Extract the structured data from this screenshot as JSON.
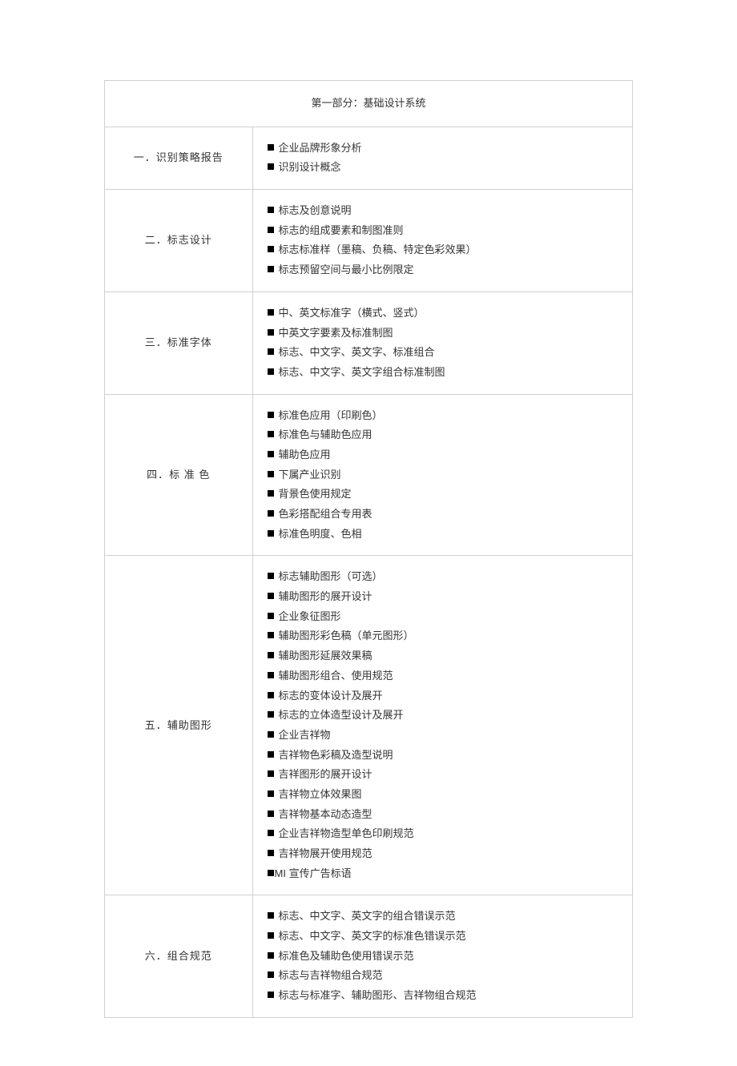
{
  "colors": {
    "page_bg": "#ffffff",
    "text": "#333333",
    "border": "#d0d0d0",
    "bullet": "#000000"
  },
  "typography": {
    "font_family": "Microsoft YaHei / SimSun",
    "base_fontsize_pt": 10,
    "line_height": 1.9
  },
  "header": "第一部分：基础设计系统",
  "sections": [
    {
      "label": "一．识别策略报告",
      "items": [
        "企业品牌形象分析",
        "识别设计概念"
      ]
    },
    {
      "label": "二．标志设计",
      "items": [
        "标志及创意说明",
        "标志的组成要素和制图准则",
        "标志标准样（墨稿、负稿、特定色彩效果）",
        "标志预留空间与最小比例限定"
      ]
    },
    {
      "label": "三．标准字体",
      "items": [
        "中、英文标准字（横式、竖式）",
        "中英文字要素及标准制图",
        "标志、中文字、英文字、标准组合",
        "标志、中文字、英文字组合标准制图"
      ]
    },
    {
      "label": "四．标 准 色",
      "items": [
        "标准色应用（印刷色）",
        "标准色与辅助色应用",
        "辅助色应用",
        "下属产业识别",
        "背景色使用规定",
        "色彩搭配组合专用表",
        "标准色明度、色相"
      ]
    },
    {
      "label": "五．辅助图形",
      "items": [
        "标志辅助图形（可选）",
        "辅助图形的展开设计",
        "企业象征图形",
        "辅助图形彩色稿（单元图形）",
        "辅助图形延展效果稿",
        "辅助图形组合、使用规范",
        "标志的变体设计及展开",
        "标志的立体造型设计及展开",
        "企业吉祥物",
        "吉祥物色彩稿及造型说明",
        "吉祥图形的展开设计",
        "吉祥物立体效果图",
        "吉祥物基本动态造型",
        "企业吉祥物造型单色印刷规范",
        "吉祥物展开使用规范"
      ],
      "tight_item": "MI 宣传广告标语"
    },
    {
      "label": "六．组合规范",
      "items": [
        "标志、中文字、英文字的组合错误示范",
        "标志、中文字、英文字的标准色错误示范",
        "标准色及辅助色使用错误示范",
        "标志与吉祥物组合规范",
        "标志与标准字、辅助图形、吉祥物组合规范"
      ]
    }
  ]
}
